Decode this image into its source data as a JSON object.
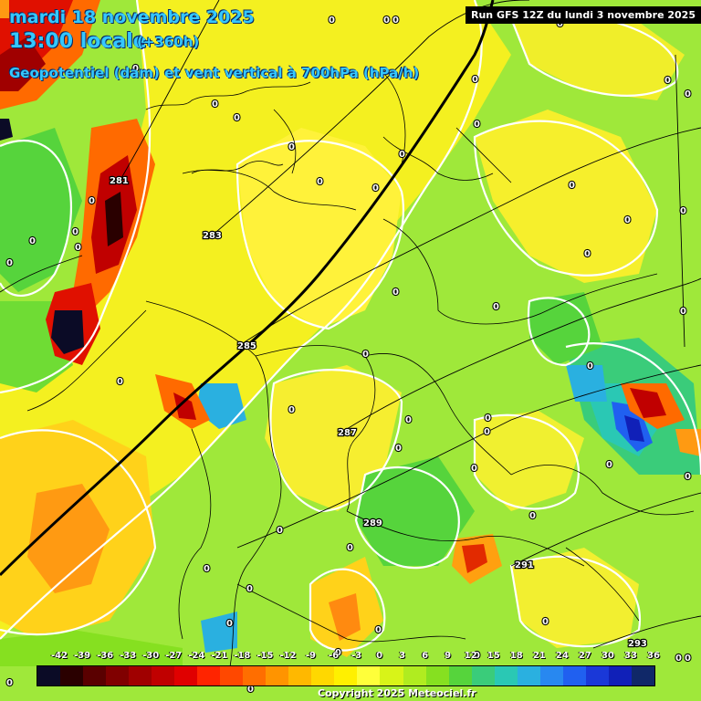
{
  "header": {
    "date_line": "mardi 18 novembre 2025",
    "time_line": "13:00 locale",
    "offset": "(+360h)",
    "parameter": "Geopotentiel (dam) et vent vertical à 700hPa (hPa/h)"
  },
  "run_info": "Run GFS 12Z du lundi 3 novembre 2025",
  "copyright": "Copyright 2025 Meteociel.fr",
  "legend": {
    "ticks": [
      "-42",
      "-39",
      "-36",
      "-33",
      "-30",
      "-27",
      "-24",
      "-21",
      "-18",
      "-15",
      "-12",
      "-9",
      "-6",
      "-3",
      "0",
      "3",
      "6",
      "9",
      "12",
      "15",
      "18",
      "21",
      "24",
      "27",
      "30",
      "33",
      "36"
    ],
    "colors": [
      "#0b0b26",
      "#2a0000",
      "#5a0000",
      "#800000",
      "#a00000",
      "#c00000",
      "#e00000",
      "#ff2400",
      "#ff4800",
      "#ff6e00",
      "#ff9400",
      "#ffb800",
      "#ffd800",
      "#fff000",
      "#ffff3a",
      "#d8f418",
      "#b0ec20",
      "#86e020",
      "#56d43c",
      "#3acc7a",
      "#2ac8b4",
      "#2ab0e0",
      "#2888f0",
      "#2060f0",
      "#1a38d8",
      "#1020b8",
      "#102868"
    ]
  },
  "geopotential_labels": [
    "281",
    "283",
    "285",
    "287",
    "289",
    "291",
    "293"
  ],
  "zero_labels": [
    "0"
  ],
  "colors": {
    "background": "#9fe83a",
    "title": "#35c8ff",
    "contour": "#ffffff",
    "border": "#000000"
  }
}
